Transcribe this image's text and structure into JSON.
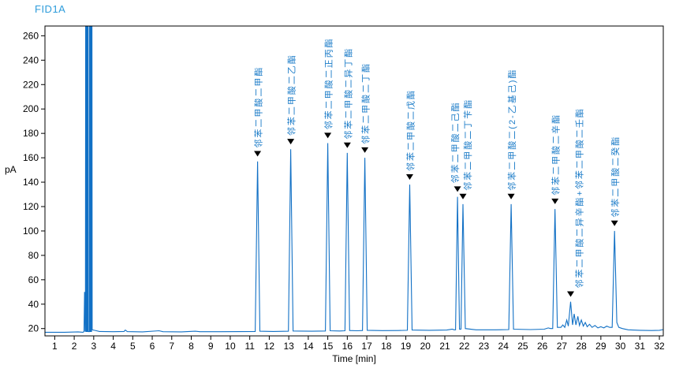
{
  "window": {
    "signal_title": "FID1A"
  },
  "colors": {
    "trace": "#1170C5",
    "title": "#2E9CDB",
    "peak_label": "#1C7CC8",
    "marker": "#000000",
    "axis": "#000000",
    "background": "#ffffff"
  },
  "chart_data": {
    "type": "line",
    "title": "FID1A",
    "xlabel": "Time [min]",
    "ylabel": "pA",
    "xlim": [
      0.5,
      32.2
    ],
    "ylim": [
      14,
      268
    ],
    "x_ticks": [
      1,
      2,
      3,
      4,
      5,
      6,
      7,
      8,
      9,
      10,
      11,
      12,
      13,
      14,
      15,
      16,
      17,
      18,
      19,
      20,
      21,
      22,
      23,
      24,
      25,
      26,
      27,
      28,
      29,
      30,
      31,
      32
    ],
    "y_ticks": [
      20,
      40,
      60,
      80,
      100,
      120,
      140,
      160,
      180,
      200,
      220,
      240,
      260
    ],
    "grid": false,
    "legend": "none",
    "solvent_bars_t": [
      [
        2.585,
        2.715
      ],
      [
        2.78,
        2.91
      ]
    ],
    "series": [
      {
        "name": "FID1A",
        "points": [
          [
            0.5,
            17
          ],
          [
            1.5,
            17
          ],
          [
            2.2,
            17.3
          ],
          [
            2.45,
            17
          ],
          [
            2.5,
            17.5
          ],
          [
            2.53,
            50
          ],
          [
            2.56,
            18
          ],
          [
            2.575,
            17.5
          ],
          [
            2.585,
            280
          ],
          [
            2.715,
            280
          ],
          [
            2.725,
            17.5
          ],
          [
            2.78,
            17.5
          ],
          [
            2.79,
            280
          ],
          [
            2.91,
            280
          ],
          [
            2.92,
            19
          ],
          [
            3.05,
            18.5
          ],
          [
            3.3,
            17.6
          ],
          [
            4.0,
            17.4
          ],
          [
            4.55,
            17.6
          ],
          [
            4.62,
            18.8
          ],
          [
            4.72,
            17.5
          ],
          [
            5.5,
            17.3
          ],
          [
            6.35,
            18.2
          ],
          [
            6.55,
            17.4
          ],
          [
            7.5,
            17.3
          ],
          [
            8.2,
            17.8
          ],
          [
            8.45,
            17.4
          ],
          [
            9.5,
            17.4
          ],
          [
            10.5,
            17.5
          ],
          [
            11.28,
            17.6
          ],
          [
            11.4,
            157
          ],
          [
            11.52,
            17.8
          ],
          [
            12.2,
            17.6
          ],
          [
            12.98,
            17.8
          ],
          [
            13.1,
            167
          ],
          [
            13.22,
            18
          ],
          [
            14.2,
            17.8
          ],
          [
            14.88,
            18
          ],
          [
            15.0,
            172
          ],
          [
            15.12,
            18.2
          ],
          [
            15.6,
            18
          ],
          [
            15.88,
            18.2
          ],
          [
            16.0,
            164
          ],
          [
            16.12,
            18.4
          ],
          [
            16.5,
            18.2
          ],
          [
            16.78,
            18.4
          ],
          [
            16.9,
            160
          ],
          [
            17.02,
            18.6
          ],
          [
            17.8,
            18.3
          ],
          [
            18.6,
            18.4
          ],
          [
            19.08,
            18.6
          ],
          [
            19.2,
            138
          ],
          [
            19.32,
            18.8
          ],
          [
            20.2,
            18.6
          ],
          [
            21.1,
            18.8
          ],
          [
            21.38,
            19.5
          ],
          [
            21.48,
            19
          ],
          [
            21.55,
            19
          ],
          [
            21.65,
            128
          ],
          [
            21.75,
            19.5
          ],
          [
            21.83,
            19.5
          ],
          [
            21.93,
            122
          ],
          [
            22.05,
            20
          ],
          [
            22.6,
            19
          ],
          [
            23.6,
            19
          ],
          [
            24.28,
            19.2
          ],
          [
            24.4,
            122
          ],
          [
            24.52,
            19.5
          ],
          [
            25.4,
            19.2
          ],
          [
            26.1,
            19.5
          ],
          [
            26.3,
            20.5
          ],
          [
            26.42,
            20
          ],
          [
            26.53,
            20
          ],
          [
            26.65,
            118
          ],
          [
            26.77,
            21
          ],
          [
            26.95,
            21
          ],
          [
            27.05,
            23
          ],
          [
            27.15,
            21
          ],
          [
            27.25,
            27
          ],
          [
            27.33,
            22
          ],
          [
            27.45,
            42
          ],
          [
            27.55,
            23
          ],
          [
            27.63,
            32
          ],
          [
            27.72,
            23
          ],
          [
            27.82,
            30
          ],
          [
            27.9,
            22.5
          ],
          [
            28.0,
            27
          ],
          [
            28.1,
            22
          ],
          [
            28.2,
            25
          ],
          [
            28.3,
            21.5
          ],
          [
            28.42,
            23.5
          ],
          [
            28.55,
            21
          ],
          [
            28.7,
            22.5
          ],
          [
            28.85,
            20.5
          ],
          [
            29.0,
            21.5
          ],
          [
            29.15,
            20.5
          ],
          [
            29.3,
            22
          ],
          [
            29.45,
            21
          ],
          [
            29.58,
            21
          ],
          [
            29.7,
            100
          ],
          [
            29.82,
            25
          ],
          [
            29.92,
            21
          ],
          [
            30.1,
            20
          ],
          [
            30.4,
            19
          ],
          [
            31.0,
            18.6
          ],
          [
            31.6,
            18.4
          ],
          [
            32.0,
            18.6
          ],
          [
            32.2,
            19.2
          ]
        ]
      }
    ],
    "peaks": [
      {
        "t": 11.4,
        "apex_pA": 157,
        "arrow_pA": 161,
        "label": "邻苯二甲酸二甲酯",
        "dx": 0
      },
      {
        "t": 13.1,
        "apex_pA": 167,
        "arrow_pA": 171,
        "label": "邻苯二甲酸二乙酯",
        "dx": 0
      },
      {
        "t": 15.0,
        "apex_pA": 172,
        "arrow_pA": 176,
        "label": "邻苯二甲酸二正丙酯",
        "dx": 0
      },
      {
        "t": 16.0,
        "apex_pA": 164,
        "arrow_pA": 168,
        "label": "邻苯二甲酸二异丁酯",
        "dx": 0
      },
      {
        "t": 16.9,
        "apex_pA": 160,
        "arrow_pA": 164,
        "label": "邻苯二甲酸二丁酯",
        "dx": 0
      },
      {
        "t": 19.2,
        "apex_pA": 138,
        "arrow_pA": 142,
        "label": "邻苯二甲酸二戊酯",
        "dx": 0
      },
      {
        "t": 21.65,
        "apex_pA": 128,
        "arrow_pA": 132,
        "label": "邻苯二甲酸二己酯",
        "dx": -4
      },
      {
        "t": 21.93,
        "apex_pA": 122,
        "arrow_pA": 126,
        "label": "邻苯二甲酸二丁苄酯",
        "dx": 5
      },
      {
        "t": 24.4,
        "apex_pA": 122,
        "arrow_pA": 126,
        "label": "邻苯二甲酸二(2-乙基己)酯",
        "dx": 0
      },
      {
        "t": 26.65,
        "apex_pA": 118,
        "arrow_pA": 122,
        "label": "邻苯二甲酸二辛酯",
        "dx": 0
      },
      {
        "t": 27.45,
        "apex_pA": 42,
        "arrow_pA": 46,
        "label": "邻苯二甲酸二异辛酯+邻苯二甲酸二壬酯",
        "dx": 10
      },
      {
        "t": 29.7,
        "apex_pA": 100,
        "arrow_pA": 104,
        "label": "邻苯二甲酸二癸酯",
        "dx": 0
      }
    ]
  }
}
